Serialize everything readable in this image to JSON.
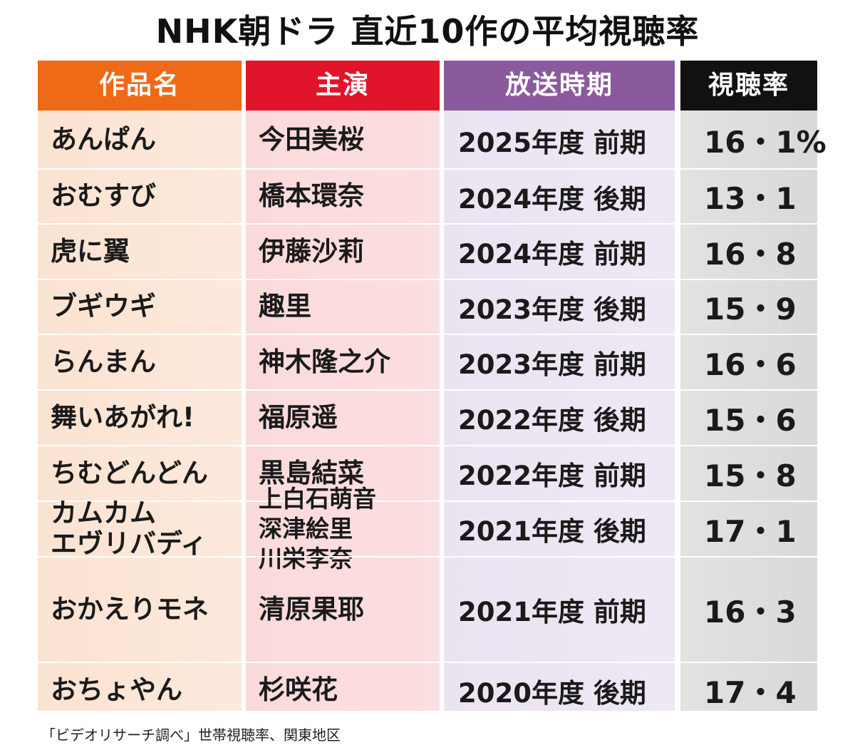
{
  "title": "NHK朝ドラ 直近10作の平均視聴率",
  "headers": {
    "title": "作品名",
    "cast": "主演",
    "period": "放送時期",
    "rating": "視聴率"
  },
  "rows": [
    {
      "title": [
        "あんぱん"
      ],
      "cast": [
        "今田美桜"
      ],
      "period": "2025年度 前期",
      "rating": "16・1%"
    },
    {
      "title": [
        "おむすび"
      ],
      "cast": [
        "橋本環奈"
      ],
      "period": "2024年度 後期",
      "rating": "13・1"
    },
    {
      "title": [
        "虎に翼"
      ],
      "cast": [
        "伊藤沙莉"
      ],
      "period": "2024年度 前期",
      "rating": "16・8"
    },
    {
      "title": [
        "ブギウギ"
      ],
      "cast": [
        "趣里"
      ],
      "period": "2023年度 後期",
      "rating": "15・9"
    },
    {
      "title": [
        "らんまん"
      ],
      "cast": [
        "神木隆之介"
      ],
      "period": "2023年度 前期",
      "rating": "16・6"
    },
    {
      "title": [
        "舞いあがれ!"
      ],
      "cast": [
        "福原遥"
      ],
      "period": "2022年度 後期",
      "rating": "15・6"
    },
    {
      "title": [
        "ちむどんどん"
      ],
      "cast": [
        "黒島結菜"
      ],
      "period": "2022年度 前期",
      "rating": "15・8"
    },
    {
      "title": [
        "カムカム",
        "エヴリバディ"
      ],
      "cast": [
        "上白石萌音",
        "深津絵里",
        "川栄李奈"
      ],
      "period": "2021年度 後期",
      "rating": "17・1"
    },
    {
      "title": [
        "おかえりモネ"
      ],
      "cast": [
        "清原果耶"
      ],
      "period": "2021年度 前期",
      "rating": "16・3"
    },
    {
      "title": [
        "おちょやん"
      ],
      "cast": [
        "杉咲花"
      ],
      "period": "2020年度 後期",
      "rating": "17・4"
    }
  ],
  "footnote": "「ビデオリサーチ調べ」世帯視聴率、関東地区",
  "colors": {
    "header_title": "#ee6a16",
    "header_cast": "#e0142a",
    "header_period": "#8b5a9c",
    "header_rating": "#111111"
  }
}
